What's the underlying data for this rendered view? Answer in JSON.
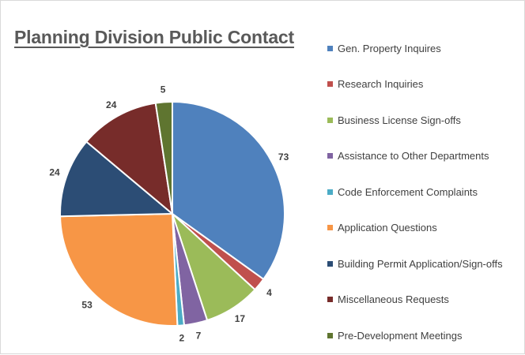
{
  "chart_data": {
    "type": "pie",
    "title": "Planning Division Public Contact",
    "legend_position": "right",
    "slices": [
      {
        "label": "Gen. Property Inquires",
        "value": 73,
        "color": "#4F81BD"
      },
      {
        "label": "Research Inquiries",
        "value": 4,
        "color": "#C0504D"
      },
      {
        "label": "Business License Sign-offs",
        "value": 17,
        "color": "#9BBB59"
      },
      {
        "label": "Assistance to Other Departments",
        "value": 7,
        "color": "#8064A2"
      },
      {
        "label": "Code Enforcement Complaints",
        "value": 2,
        "color": "#4BACC6"
      },
      {
        "label": "Application Questions",
        "value": 53,
        "color": "#F79646"
      },
      {
        "label": "Building Permit Application/Sign-offs",
        "value": 24,
        "color": "#2C4D75"
      },
      {
        "label": "Miscellaneous Requests",
        "value": 24,
        "color": "#772C2A"
      },
      {
        "label": "Pre-Development Meetings",
        "value": 5,
        "color": "#5F7530"
      }
    ]
  }
}
